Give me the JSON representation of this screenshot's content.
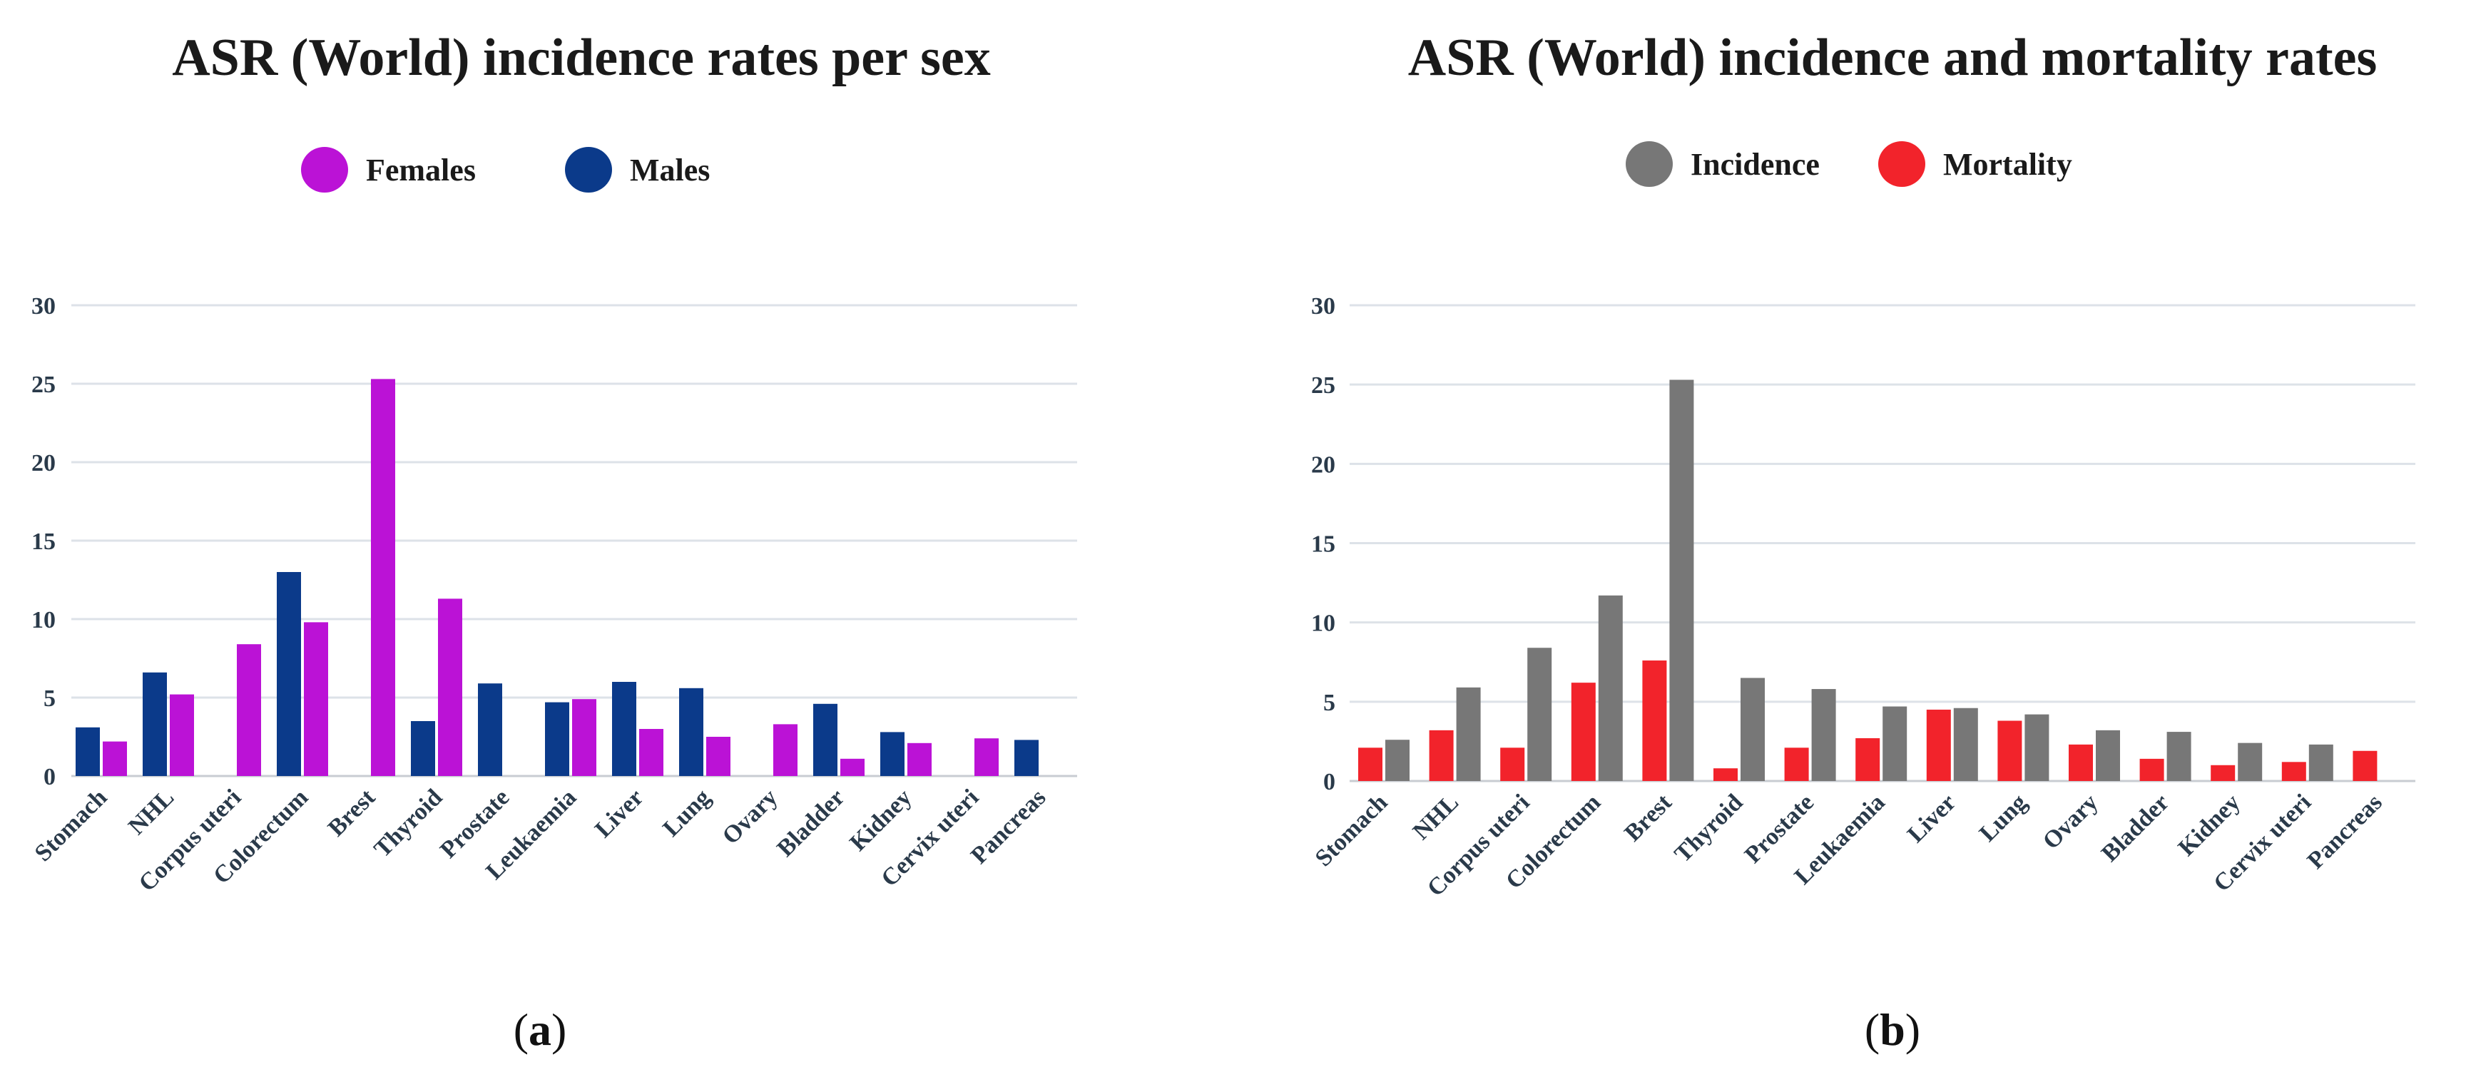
{
  "chart_data": [
    {
      "type": "bar",
      "title": "ASR (World) incidence rates per sex",
      "panel_label_prefix": "(",
      "panel_label_letter": "a",
      "panel_label_suffix": ")",
      "categories": [
        "Stomach",
        "NHL",
        "Corpus uteri",
        "Colorectum",
        "Brest",
        "Thyroid",
        "Prostate",
        "Leukaemia",
        "Liver",
        "Lung",
        "Ovary",
        "Bladder",
        "Kidney",
        "Cervix uteri",
        "Pancreas"
      ],
      "series": [
        {
          "name": "Males",
          "color": "#0b3a8a",
          "values": [
            3.1,
            6.6,
            null,
            13.0,
            null,
            3.5,
            5.9,
            4.7,
            6.0,
            5.6,
            null,
            4.6,
            2.8,
            null,
            2.3
          ]
        },
        {
          "name": "Females",
          "color": "#bb12d6",
          "values": [
            2.2,
            5.2,
            8.4,
            9.8,
            25.3,
            11.3,
            null,
            4.9,
            3.0,
            2.5,
            3.3,
            1.1,
            2.1,
            2.4,
            null
          ]
        }
      ],
      "legend": [
        {
          "name": "Females",
          "color": "#bb12d6"
        },
        {
          "name": "Males",
          "color": "#0b3a8a"
        }
      ],
      "ylim": [
        0,
        30
      ],
      "yticks": [
        "0",
        "5",
        "10",
        "15",
        "20",
        "25",
        "30"
      ],
      "grid": true,
      "legend_position": "top-center"
    },
    {
      "type": "bar",
      "title": "ASR (World) incidence and mortality rates",
      "panel_label_prefix": "(",
      "panel_label_letter": "b",
      "panel_label_suffix": ")",
      "categories": [
        "Stomach",
        "NHL",
        "Corpus uteri",
        "Colorectum",
        "Brest",
        "Thyroid",
        "Prostate",
        "Leukaemia",
        "Liver",
        "Lung",
        "Ovary",
        "Bladder",
        "Kidney",
        "Cervix uteri",
        "Pancreas"
      ],
      "series": [
        {
          "name": "Mortality",
          "color": "#f2232b",
          "values": [
            2.1,
            3.2,
            2.1,
            6.2,
            7.6,
            0.8,
            2.1,
            2.7,
            4.5,
            3.8,
            2.3,
            1.4,
            1.0,
            1.2,
            1.9
          ]
        },
        {
          "name": "Incidence",
          "color": "#777777",
          "values": [
            2.6,
            5.9,
            8.4,
            11.7,
            25.3,
            6.5,
            5.8,
            4.7,
            4.6,
            4.2,
            3.2,
            3.1,
            2.4,
            2.3,
            null
          ]
        }
      ],
      "legend": [
        {
          "name": "Incidence",
          "color": "#777777"
        },
        {
          "name": "Mortality",
          "color": "#f2232b"
        }
      ],
      "ylim": [
        0,
        30
      ],
      "yticks": [
        "0",
        "5",
        "10",
        "15",
        "20",
        "25",
        "30"
      ],
      "grid": true,
      "legend_position": "top-center"
    }
  ]
}
